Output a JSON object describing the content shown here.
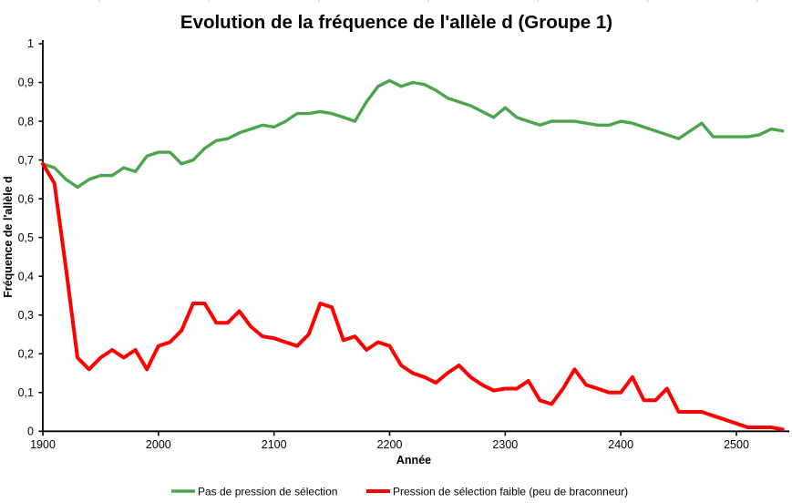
{
  "chart_data": {
    "type": "line",
    "title": "Evolution de la fréquence de l'allèle d (Groupe 1)",
    "xlabel": "Année",
    "ylabel": "Fréquence de l'allèle d",
    "xlim": [
      1900,
      2540
    ],
    "ylim": [
      0,
      1
    ],
    "grid": false,
    "legend_position": "bottom",
    "x_ticks": [
      1900,
      2000,
      2100,
      2200,
      2300,
      2400,
      2500
    ],
    "y_ticks": [
      {
        "value": 0,
        "label": "0"
      },
      {
        "value": 0.1,
        "label": "0,1"
      },
      {
        "value": 0.2,
        "label": "0,2"
      },
      {
        "value": 0.3,
        "label": "0,3"
      },
      {
        "value": 0.4,
        "label": "0,4"
      },
      {
        "value": 0.5,
        "label": "0,5"
      },
      {
        "value": 0.6,
        "label": "0,6"
      },
      {
        "value": 0.7,
        "label": "0,7"
      },
      {
        "value": 0.8,
        "label": "0,8"
      },
      {
        "value": 0.9,
        "label": "0,9"
      },
      {
        "value": 1,
        "label": "1"
      }
    ],
    "x": [
      1900,
      1910,
      1920,
      1930,
      1940,
      1950,
      1960,
      1970,
      1980,
      1990,
      2000,
      2010,
      2020,
      2030,
      2040,
      2050,
      2060,
      2070,
      2080,
      2090,
      2100,
      2110,
      2120,
      2130,
      2140,
      2150,
      2160,
      2170,
      2180,
      2190,
      2200,
      2210,
      2220,
      2230,
      2240,
      2250,
      2260,
      2270,
      2280,
      2290,
      2300,
      2310,
      2320,
      2330,
      2340,
      2350,
      2360,
      2370,
      2380,
      2390,
      2400,
      2410,
      2420,
      2430,
      2440,
      2450,
      2460,
      2470,
      2480,
      2490,
      2500,
      2510,
      2520,
      2530,
      2540
    ],
    "series": [
      {
        "name": "Pas de pression de sélection",
        "color": "#4aa54c",
        "stroke_width": 3.4,
        "values": [
          0.69,
          0.68,
          0.65,
          0.63,
          0.65,
          0.66,
          0.66,
          0.68,
          0.67,
          0.71,
          0.72,
          0.72,
          0.69,
          0.7,
          0.73,
          0.75,
          0.755,
          0.77,
          0.78,
          0.79,
          0.785,
          0.8,
          0.82,
          0.82,
          0.825,
          0.82,
          0.81,
          0.8,
          0.85,
          0.89,
          0.905,
          0.89,
          0.9,
          0.895,
          0.88,
          0.86,
          0.85,
          0.84,
          0.825,
          0.81,
          0.835,
          0.81,
          0.8,
          0.79,
          0.8,
          0.8,
          0.8,
          0.795,
          0.79,
          0.79,
          0.8,
          0.795,
          0.785,
          0.775,
          0.765,
          0.755,
          0.775,
          0.795,
          0.76,
          0.76,
          0.76,
          0.76,
          0.765,
          0.78,
          0.775
        ]
      },
      {
        "name": "Pression de sélection faible (peu de braconneur)",
        "color": "#ff0000",
        "stroke_width": 4,
        "values": [
          0.69,
          0.64,
          0.42,
          0.19,
          0.16,
          0.19,
          0.21,
          0.19,
          0.21,
          0.16,
          0.22,
          0.23,
          0.26,
          0.33,
          0.33,
          0.28,
          0.28,
          0.31,
          0.27,
          0.245,
          0.24,
          0.23,
          0.22,
          0.25,
          0.33,
          0.32,
          0.235,
          0.245,
          0.21,
          0.23,
          0.22,
          0.17,
          0.15,
          0.14,
          0.125,
          0.15,
          0.17,
          0.14,
          0.12,
          0.105,
          0.11,
          0.11,
          0.13,
          0.08,
          0.07,
          0.11,
          0.16,
          0.12,
          0.11,
          0.1,
          0.1,
          0.14,
          0.08,
          0.08,
          0.11,
          0.05,
          0.05,
          0.05,
          0.04,
          0.03,
          0.02,
          0.01,
          0.01,
          0.01,
          0.005
        ]
      }
    ]
  }
}
